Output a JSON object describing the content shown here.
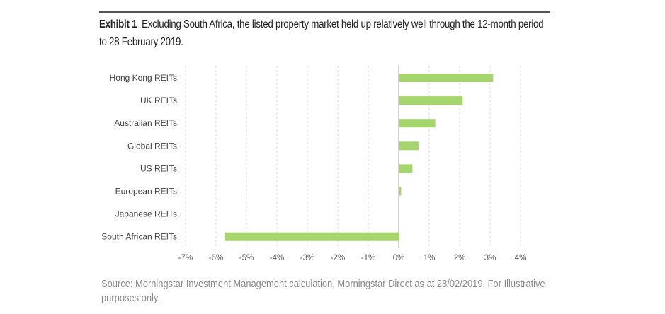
{
  "exhibit": {
    "label": "Exhibit 1",
    "title": "Excluding South Africa, the listed property market held up relatively well through the 12-month period to 28 February 2019."
  },
  "source_note": "Source: Morningstar Investment Management calculation, Morningstar Direct as at 28/02/2019. For Illustrative purposes only.",
  "chart_data": {
    "type": "bar",
    "orientation": "horizontal",
    "title": "Excluding South Africa, the listed property market held up relatively well through the 12-month period to 28 February 2019.",
    "xlabel": "",
    "ylabel": "",
    "categories": [
      "Hong Kong REITs",
      "UK REITs",
      "Australian REITs",
      "Global REITs",
      "US REITs",
      "European REITs",
      "Japanese REITs",
      "South African REITs"
    ],
    "values": [
      3.1,
      2.1,
      1.2,
      0.65,
      0.45,
      0.08,
      0.0,
      -5.7
    ],
    "unit": "%",
    "xlim": [
      -7,
      4
    ],
    "xticks": [
      -7,
      -6,
      -5,
      -4,
      -3,
      -2,
      -1,
      0,
      1,
      2,
      3,
      4
    ],
    "xtick_labels": [
      "-7%",
      "-6%",
      "-5%",
      "-4%",
      "-3%",
      "-2%",
      "-1%",
      "0%",
      "1%",
      "2%",
      "3%",
      "4%"
    ],
    "grid": "vertical dashed",
    "legend": "none",
    "bar_color": "#a6d56e"
  }
}
